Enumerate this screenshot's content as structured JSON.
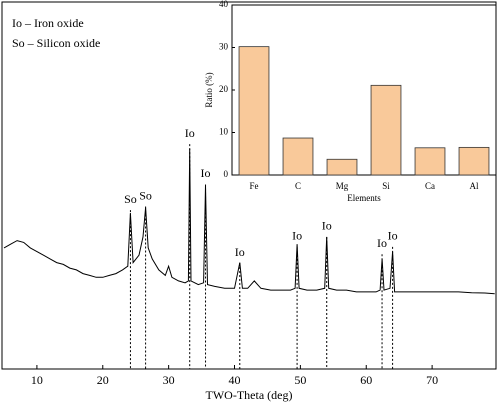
{
  "chart_data": [
    {
      "type": "line",
      "xlabel": "TWO-Theta (deg)",
      "color": "#000000",
      "xlim": [
        4.7,
        79.7
      ],
      "xticks": [
        10,
        20,
        30,
        40,
        50,
        60,
        70
      ],
      "ylim": [
        0,
        100
      ],
      "legend_text": [
        "Io – Iron oxide",
        "So – Silicon oxide"
      ],
      "x": [
        5,
        6,
        7,
        8,
        9,
        10,
        11,
        12,
        13,
        14,
        15,
        16,
        17,
        18,
        19,
        20,
        21,
        22,
        23,
        23.8,
        24.2,
        24.6,
        25.5,
        26.1,
        26.5,
        26.9,
        27.5,
        28.5,
        29.5,
        30,
        30.5,
        31.5,
        32.5,
        33,
        33.2,
        33.4,
        34.5,
        35.3,
        35.6,
        35.9,
        37,
        38.5,
        40,
        40.8,
        41.2,
        42,
        43,
        44,
        45.5,
        47,
        48.5,
        49.2,
        49.5,
        49.8,
        51,
        52.5,
        53.7,
        54,
        54.3,
        55.5,
        57,
        58.5,
        60,
        61.5,
        62.1,
        62.4,
        62.7,
        63.6,
        64,
        64.3,
        65.5,
        67,
        68.5,
        70,
        72,
        74,
        76,
        78,
        79.5
      ],
      "values": [
        33,
        34,
        35,
        34.5,
        33,
        32,
        31,
        30,
        29,
        28.5,
        27.5,
        27,
        26,
        25.5,
        25,
        25,
        25.5,
        26,
        27,
        28,
        42.5,
        29,
        31,
        36,
        44,
        33,
        30,
        27,
        25.5,
        28,
        25,
        24,
        23.5,
        24,
        60,
        24,
        23,
        23.5,
        50,
        23,
        22.5,
        22,
        22,
        29,
        22,
        22,
        24,
        22,
        21.5,
        21.5,
        21.5,
        22,
        34,
        22,
        21.5,
        21.5,
        22,
        36,
        22,
        21.5,
        21.5,
        21,
        21,
        21,
        21.5,
        30,
        21.5,
        22,
        32,
        21,
        21,
        21,
        21,
        21,
        21,
        21,
        20.8,
        20.7,
        20.5
      ],
      "annotations": [
        {
          "text": "So",
          "x": 24.2,
          "y": 46
        },
        {
          "text": "So",
          "x": 26.5,
          "y": 47
        },
        {
          "text": "Io",
          "x": 33.2,
          "y": 64
        },
        {
          "text": "Io",
          "x": 35.6,
          "y": 53
        },
        {
          "text": "Io",
          "x": 40.8,
          "y": 31.6
        },
        {
          "text": "Io",
          "x": 49.5,
          "y": 36
        },
        {
          "text": "Io",
          "x": 54,
          "y": 38.7
        },
        {
          "text": "Io",
          "x": 62.4,
          "y": 34
        },
        {
          "text": "Io",
          "x": 64,
          "y": 36
        }
      ]
    },
    {
      "type": "bar",
      "xlabel": "Elements",
      "ylabel": "Ratio (%)",
      "color": "#f9c99a",
      "categories": [
        "Fe",
        "C",
        "Mg",
        "Si",
        "Ca",
        "Al"
      ],
      "values": [
        30.2,
        8.7,
        3.7,
        21.1,
        6.4,
        6.5
      ],
      "ylim": [
        0,
        40
      ],
      "yticks": [
        0,
        10,
        20,
        30,
        40
      ]
    }
  ]
}
